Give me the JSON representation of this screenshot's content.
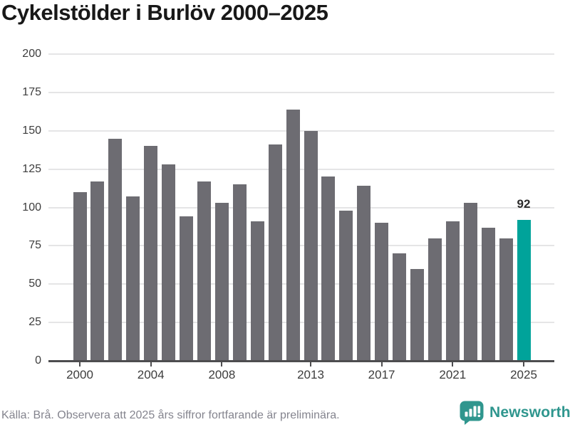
{
  "title": "Cykelstölder i Burlöv 2000–2025",
  "chart_data": {
    "type": "bar",
    "title": "Cykelstölder i Burlöv 2000–2025",
    "x": [
      2000,
      2001,
      2002,
      2003,
      2004,
      2005,
      2006,
      2007,
      2008,
      2009,
      2010,
      2011,
      2012,
      2013,
      2014,
      2015,
      2016,
      2017,
      2018,
      2019,
      2020,
      2021,
      2022,
      2023,
      2024,
      2025
    ],
    "values": [
      110,
      117,
      145,
      107,
      140,
      128,
      94,
      117,
      103,
      115,
      91,
      141,
      164,
      150,
      120,
      98,
      114,
      90,
      70,
      60,
      80,
      91,
      103,
      87,
      80,
      92
    ],
    "highlight_index": 25,
    "highlight_label": "92",
    "xlabel": "",
    "ylabel": "",
    "ylim": [
      0,
      200
    ],
    "yticks": [
      0,
      25,
      50,
      75,
      100,
      125,
      150,
      175,
      200
    ],
    "xtick_years": [
      2000,
      2004,
      2008,
      2013,
      2017,
      2021,
      2025
    ],
    "grid": true,
    "legend": "none",
    "bar_color": "#6d6c72",
    "highlight_color": "#00a39a"
  },
  "footer": {
    "source": "Källa: Brå. Observera att 2025 års siffror fortfarande är preliminära.",
    "brand": {
      "label": "Newsworthy",
      "icon": "bar-chart-speech-bubble-icon",
      "color": "#2f968e"
    }
  }
}
